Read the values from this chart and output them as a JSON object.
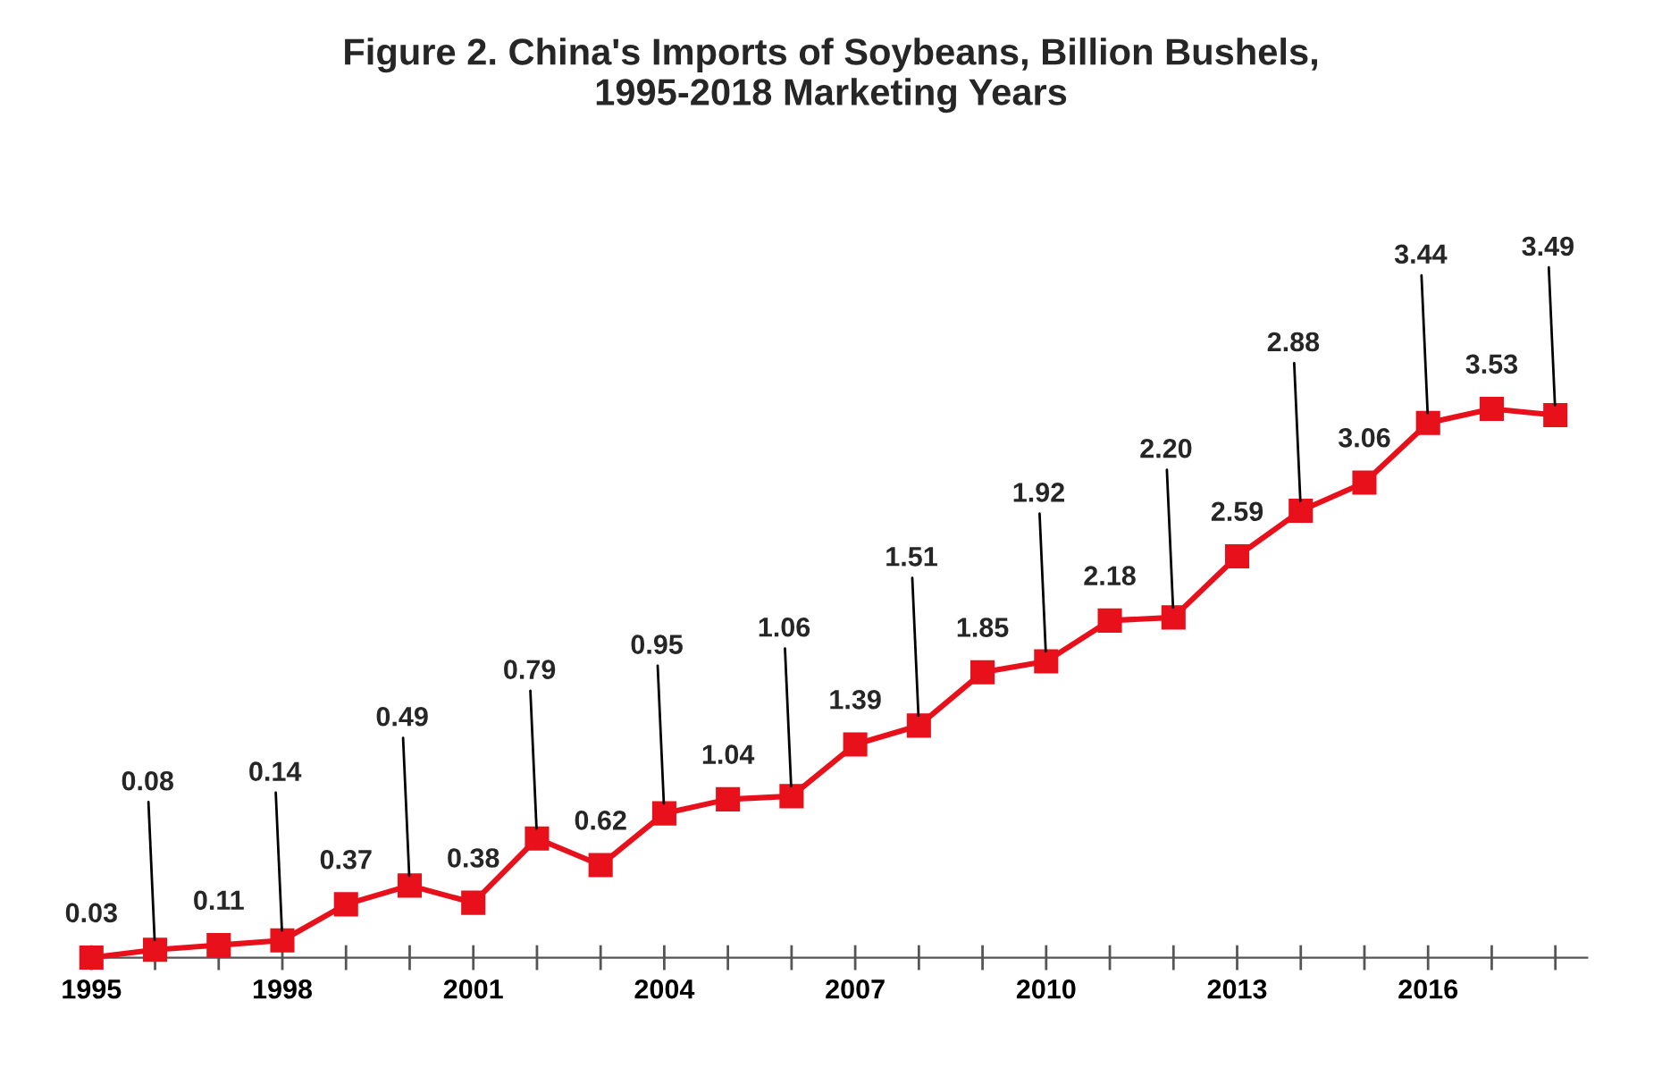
{
  "chart_data": {
    "type": "line",
    "title": "Figure 2. China's Imports of Soybeans, Billion Bushels,\n1995-2018 Marketing Years",
    "x": [
      1995,
      1996,
      1997,
      1998,
      1999,
      2000,
      2001,
      2002,
      2003,
      2004,
      2005,
      2006,
      2007,
      2008,
      2009,
      2010,
      2011,
      2012,
      2013,
      2014,
      2015,
      2016,
      2017,
      2018
    ],
    "series": [
      {
        "color": "#e8101a",
        "values": [
          0.03,
          0.08,
          0.11,
          0.14,
          0.37,
          0.49,
          0.38,
          0.79,
          0.62,
          0.95,
          1.04,
          1.06,
          1.39,
          1.51,
          1.85,
          1.92,
          2.18,
          2.2,
          2.59,
          2.88,
          3.06,
          3.44,
          3.53,
          3.49
        ],
        "value_labels": [
          "0.03",
          "0.08",
          "0.11",
          "0.14",
          "0.37",
          "0.49",
          "0.38",
          "0.79",
          "0.62",
          "0.95",
          "1.04",
          "1.06",
          "1.39",
          "1.51",
          "1.85",
          "1.92",
          "2.18",
          "2.20",
          "2.59",
          "2.88",
          "3.06",
          "3.44",
          "3.53",
          "3.49"
        ]
      }
    ],
    "xlim": [
      1995,
      2018.5
    ],
    "xticks": [
      1995,
      {
        "value": 1996,
        "label": null
      },
      {
        "value": 1997,
        "label": null
      },
      1998,
      {
        "value": 1999,
        "label": null
      },
      {
        "value": 2000,
        "label": null
      },
      2001,
      {
        "value": 2002,
        "label": null
      },
      {
        "value": 2003,
        "label": null
      },
      2004,
      {
        "value": 2005,
        "label": null
      },
      {
        "value": 2006,
        "label": null
      },
      2007,
      {
        "value": 2008,
        "label": null
      },
      {
        "value": 2009,
        "label": null
      },
      2010,
      {
        "value": 2011,
        "label": null
      },
      {
        "value": 2012,
        "label": null
      },
      2013,
      {
        "value": 2014,
        "label": null
      },
      {
        "value": 2015,
        "label": null
      },
      2016,
      {
        "value": 2017,
        "label": null
      },
      {
        "value": 2018,
        "label": null
      }
    ],
    "tick_labels": "x",
    "marker": "square",
    "line_style": "solid",
    "grid": false,
    "legend": false
  }
}
